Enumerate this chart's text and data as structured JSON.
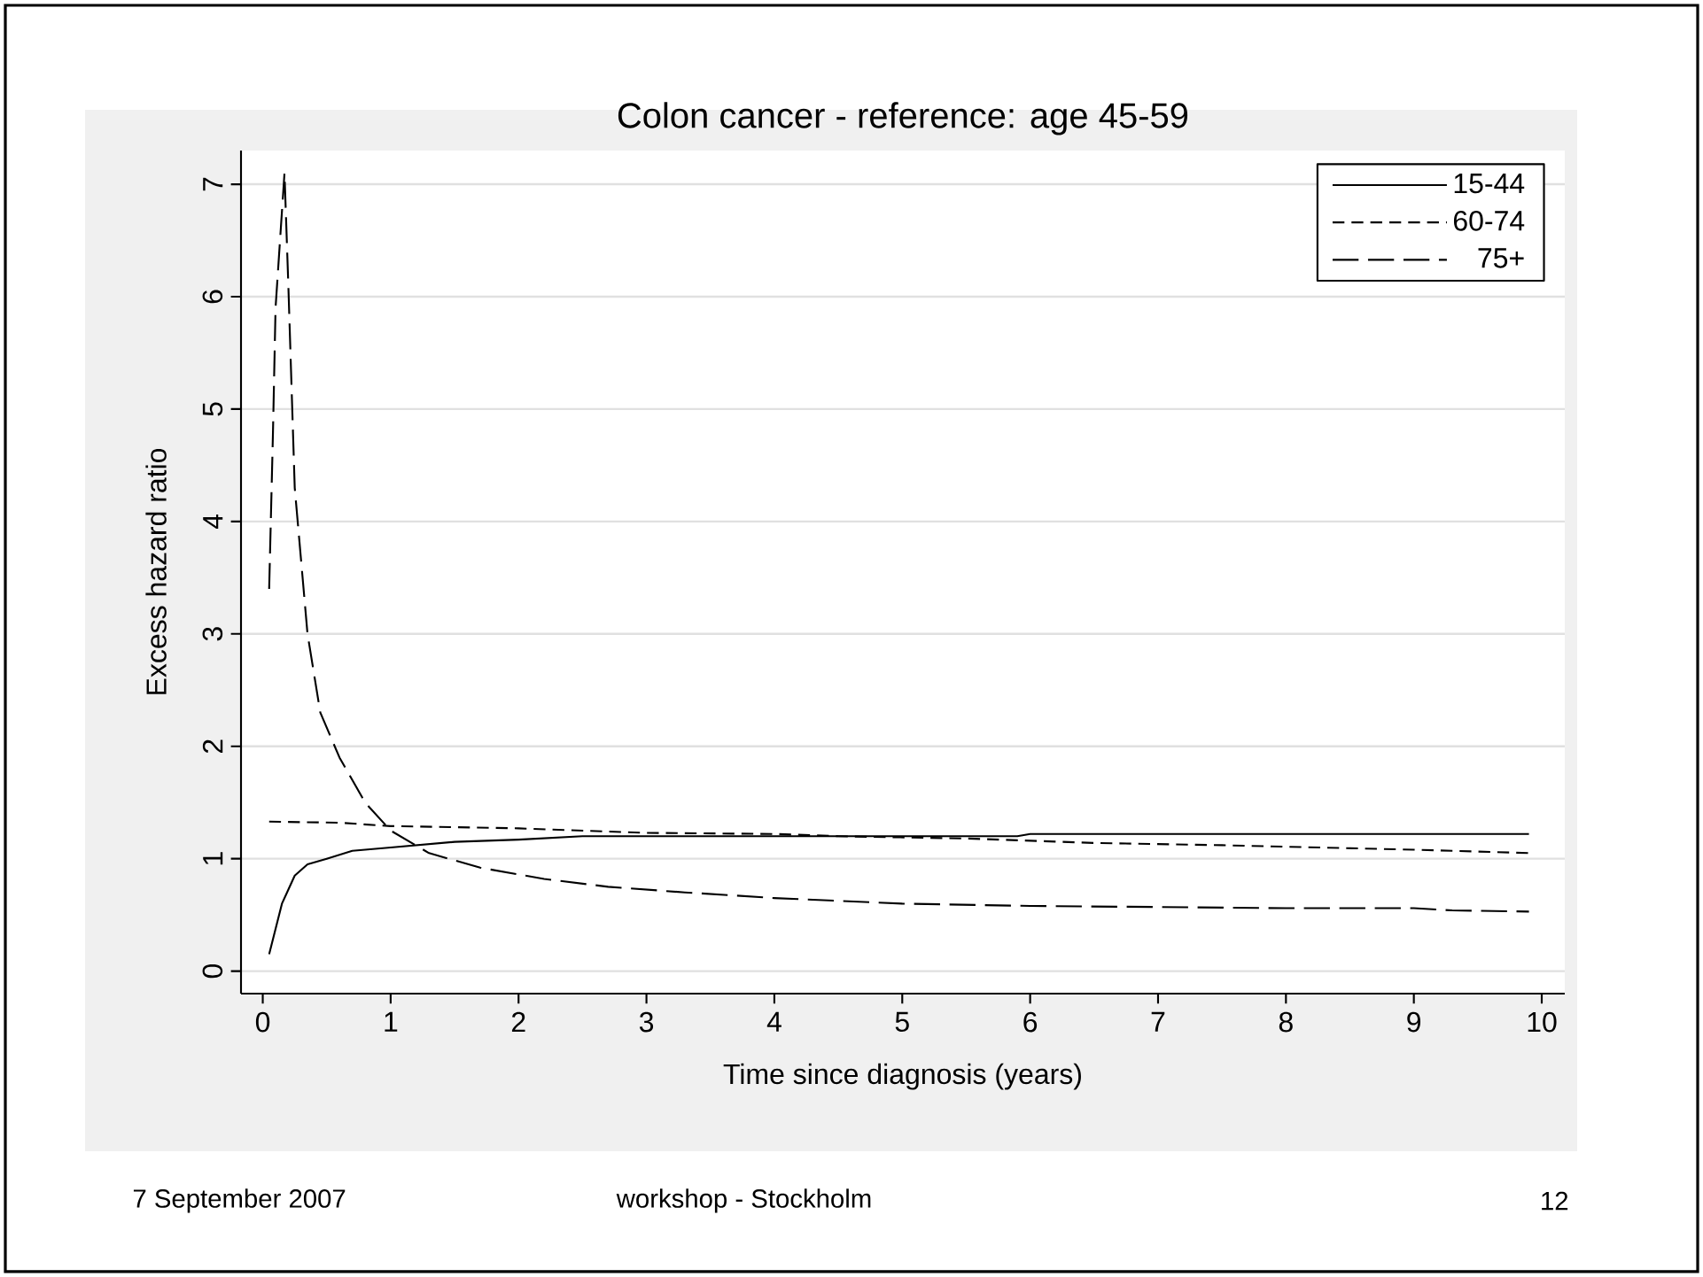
{
  "chart_data": {
    "type": "line",
    "title": "Colon cancer - reference: age 45-59",
    "xlabel": "Time since diagnosis (years)",
    "ylabel": "Excess hazard ratio",
    "xlim": [
      -0.17,
      10.18
    ],
    "ylim": [
      -0.2,
      7.3
    ],
    "xticks": [
      0,
      1,
      2,
      3,
      4,
      5,
      6,
      7,
      8,
      9,
      10
    ],
    "yticks": [
      0,
      1,
      2,
      3,
      4,
      5,
      6,
      7
    ],
    "grid": "y",
    "legend": "top right",
    "marker": "none",
    "series": [
      {
        "name": "15-44",
        "color": "#000000",
        "line_style": "solid",
        "x": [
          0.05,
          0.15,
          0.25,
          0.35,
          0.5,
          0.7,
          1.0,
          1.5,
          2.0,
          2.5,
          3.0,
          4.0,
          5.0,
          5.9,
          6.0,
          7.0,
          8.0,
          9.0,
          9.9
        ],
        "values": [
          0.15,
          0.6,
          0.85,
          0.95,
          1.0,
          1.07,
          1.1,
          1.15,
          1.17,
          1.2,
          1.2,
          1.2,
          1.2,
          1.2,
          1.22,
          1.22,
          1.22,
          1.22,
          1.22
        ]
      },
      {
        "name": "60-74",
        "color": "#000000",
        "line_style": "dashed",
        "x": [
          0.05,
          0.6,
          1.0,
          2.0,
          3.0,
          4.0,
          4.5,
          5.5,
          6.5,
          7.5,
          9.0,
          9.9
        ],
        "values": [
          1.33,
          1.32,
          1.29,
          1.27,
          1.23,
          1.22,
          1.2,
          1.18,
          1.14,
          1.12,
          1.08,
          1.05
        ]
      },
      {
        "name": "75+",
        "color": "#000000",
        "line_style": "dashed",
        "x": [
          0.05,
          0.08,
          0.1,
          0.17,
          0.2,
          0.25,
          0.35,
          0.45,
          0.6,
          0.8,
          1.0,
          1.3,
          1.7,
          2.2,
          2.7,
          3.3,
          4.0,
          5.0,
          6.0,
          7.0,
          8.0,
          9.0,
          9.3,
          9.9
        ],
        "values": [
          3.4,
          4.8,
          5.9,
          7.1,
          6.1,
          4.3,
          3.0,
          2.3,
          1.9,
          1.5,
          1.25,
          1.05,
          0.92,
          0.82,
          0.75,
          0.7,
          0.65,
          0.6,
          0.58,
          0.57,
          0.56,
          0.56,
          0.54,
          0.53
        ]
      }
    ],
    "annotations": [
      "7 September 2007",
      "workshop - Stockholm",
      "12"
    ]
  }
}
